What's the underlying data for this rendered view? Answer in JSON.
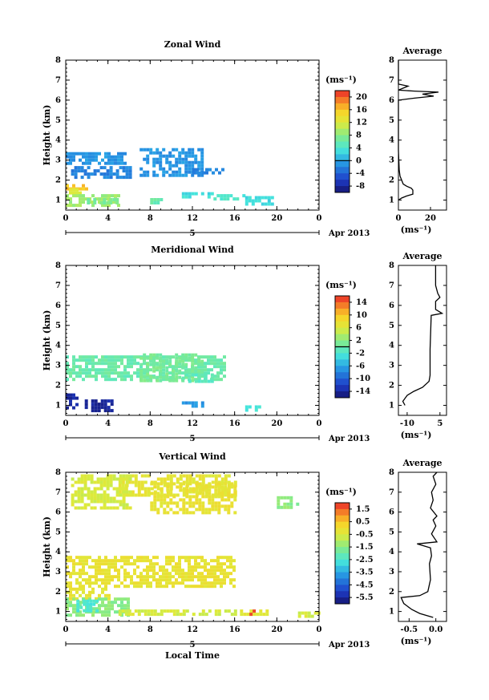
{
  "chart_data": [
    {
      "type": "heatmap",
      "title": "Zonal Wind",
      "ylabel": "Height (km)",
      "xlim": [
        0,
        24
      ],
      "ylim": [
        0.5,
        8
      ],
      "x_ticks": [
        "0",
        "4",
        "8",
        "12",
        "16",
        "20",
        "0"
      ],
      "x_tick_values": [
        0,
        4,
        8,
        12,
        16,
        20,
        24
      ],
      "y_ticks": [
        "1",
        "2",
        "3",
        "4",
        "5",
        "6",
        "7",
        "8"
      ],
      "date_marker": "5",
      "date_label": "Apr 2013",
      "colorbar_unit": "(ms⁻¹)",
      "colorbar_ticks": [
        "20",
        "16",
        "12",
        "8",
        "4",
        "0",
        "-4",
        "-8"
      ],
      "colorbar_values": [
        20,
        16,
        12,
        8,
        4,
        0,
        -4,
        -8
      ],
      "colorbar_range": [
        -10,
        22
      ],
      "colorbar_zero_line": 0,
      "patches": [
        {
          "x": [
            0,
            2
          ],
          "y": [
            1.6,
            1.8
          ],
          "v": 16
        },
        {
          "x": [
            0,
            1.5
          ],
          "y": [
            1.3,
            1.6
          ],
          "v": 12
        },
        {
          "x": [
            0,
            5
          ],
          "y": [
            0.8,
            1.3
          ],
          "v": 9
        },
        {
          "x": [
            2,
            5
          ],
          "y": [
            0.8,
            1.1
          ],
          "v": 7
        },
        {
          "x": [
            8,
            9
          ],
          "y": [
            0.8,
            1.1
          ],
          "v": 6
        },
        {
          "x": [
            11,
            14
          ],
          "y": [
            1.1,
            1.4
          ],
          "v": 3
        },
        {
          "x": [
            14,
            17
          ],
          "y": [
            1.1,
            1.3
          ],
          "v": 4
        },
        {
          "x": [
            17,
            19.5
          ],
          "y": [
            0.8,
            1.2
          ],
          "v": 3
        },
        {
          "x": [
            0,
            5.5
          ],
          "y": [
            2.8,
            3.4
          ],
          "v": -1
        },
        {
          "x": [
            0.5,
            6
          ],
          "y": [
            2.2,
            2.7
          ],
          "v": -2
        },
        {
          "x": [
            7,
            13
          ],
          "y": [
            2.2,
            3.6
          ],
          "v": -1
        },
        {
          "x": [
            12,
            15
          ],
          "y": [
            2.3,
            2.6
          ],
          "v": -2
        }
      ],
      "profile": {
        "title": "Average",
        "xlabel": "(ms⁻¹)",
        "xlim": [
          0,
          30
        ],
        "x_ticks": [
          "0",
          "20"
        ],
        "x_tick_values": [
          0,
          20
        ],
        "points": [
          [
            0,
            1.0
          ],
          [
            2,
            1.1
          ],
          [
            5,
            1.2
          ],
          [
            9,
            1.3
          ],
          [
            9,
            1.5
          ],
          [
            8,
            1.6
          ],
          [
            5,
            1.7
          ],
          [
            3,
            1.8
          ],
          [
            2,
            2.0
          ],
          [
            1,
            2.2
          ],
          [
            0.5,
            2.5
          ],
          [
            0,
            3.5
          ],
          [
            0,
            6.0
          ],
          [
            10,
            6.1
          ],
          [
            22,
            6.2
          ],
          [
            15,
            6.3
          ],
          [
            25,
            6.4
          ],
          [
            10,
            6.45
          ],
          [
            0,
            6.5
          ],
          [
            3,
            6.6
          ],
          [
            6,
            6.7
          ],
          [
            0,
            6.8
          ],
          [
            0,
            8
          ]
        ]
      }
    },
    {
      "type": "heatmap",
      "title": "Meridional Wind",
      "ylabel": "Height (km)",
      "xlim": [
        0,
        24
      ],
      "ylim": [
        0.5,
        8
      ],
      "x_ticks": [
        "0",
        "4",
        "8",
        "12",
        "16",
        "20",
        "0"
      ],
      "x_tick_values": [
        0,
        4,
        8,
        12,
        16,
        20,
        24
      ],
      "y_ticks": [
        "1",
        "2",
        "3",
        "4",
        "5",
        "6",
        "7",
        "8"
      ],
      "date_marker": "5",
      "date_label": "Apr 2013",
      "colorbar_unit": "(ms⁻¹)",
      "colorbar_ticks": [
        "14",
        "10",
        "6",
        "2",
        "-2",
        "-6",
        "-10",
        "-14"
      ],
      "colorbar_values": [
        14,
        10,
        6,
        2,
        -2,
        -6,
        -10,
        -14
      ],
      "colorbar_range": [
        -16,
        16
      ],
      "colorbar_zero_line": 0,
      "patches": [
        {
          "x": [
            0,
            1
          ],
          "y": [
            0.8,
            1.6
          ],
          "v": -14
        },
        {
          "x": [
            1.8,
            4.5
          ],
          "y": [
            0.8,
            1.3
          ],
          "v": -14
        },
        {
          "x": [
            0,
            15
          ],
          "y": [
            2.3,
            3.5
          ],
          "v": 0
        },
        {
          "x": [
            7,
            13
          ],
          "y": [
            2.3,
            3.6
          ],
          "v": 1
        },
        {
          "x": [
            11,
            14
          ],
          "y": [
            2.2,
            2.6
          ],
          "v": -1
        },
        {
          "x": [
            11,
            13
          ],
          "y": [
            0.9,
            1.2
          ],
          "v": -7
        },
        {
          "x": [
            17,
            18.5
          ],
          "y": [
            0.8,
            1.0
          ],
          "v": -3
        }
      ],
      "profile": {
        "title": "Average",
        "xlabel": "(ms⁻¹)",
        "xlim": [
          -14,
          8
        ],
        "x_ticks": [
          "-10",
          "5"
        ],
        "x_tick_values": [
          -10,
          5
        ],
        "points": [
          [
            -11,
            1.0
          ],
          [
            -12,
            1.2
          ],
          [
            -10,
            1.5
          ],
          [
            -7,
            1.7
          ],
          [
            -3,
            1.9
          ],
          [
            0,
            2.2
          ],
          [
            0.5,
            2.5
          ],
          [
            0.5,
            3.8
          ],
          [
            1,
            5.5
          ],
          [
            6,
            5.6
          ],
          [
            3,
            5.8
          ],
          [
            3,
            6.2
          ],
          [
            5,
            6.4
          ],
          [
            4,
            6.6
          ],
          [
            3,
            7.0
          ],
          [
            3,
            8
          ]
        ]
      }
    },
    {
      "type": "heatmap",
      "title": "Vertical Wind",
      "ylabel": "Height (km)",
      "xlabel": "Local Time",
      "xlim": [
        0,
        24
      ],
      "ylim": [
        0.5,
        8
      ],
      "x_ticks": [
        "0",
        "4",
        "8",
        "12",
        "16",
        "20",
        "0"
      ],
      "x_tick_values": [
        0,
        4,
        8,
        12,
        16,
        20,
        24
      ],
      "y_ticks": [
        "1",
        "2",
        "3",
        "4",
        "5",
        "6",
        "7",
        "8"
      ],
      "date_marker": "5",
      "date_label": "Apr 2013",
      "colorbar_unit": "(ms⁻¹)",
      "colorbar_ticks": [
        "1.5",
        "0.5",
        "-0.5",
        "-1.5",
        "-2.5",
        "-3.5",
        "-4.5",
        "-5.5"
      ],
      "colorbar_values": [
        1.5,
        0.5,
        -0.5,
        -1.5,
        -2.5,
        -3.5,
        -4.5,
        -5.5
      ],
      "colorbar_range": [
        -6,
        2
      ],
      "colorbar_zero_line": null,
      "patches": [
        {
          "x": [
            0,
            16
          ],
          "y": [
            2.3,
            3.8
          ],
          "v": -0.2
        },
        {
          "x": [
            0,
            4
          ],
          "y": [
            1.6,
            2.2
          ],
          "v": -0.3
        },
        {
          "x": [
            0,
            6
          ],
          "y": [
            0.8,
            1.7
          ],
          "v": -1.5
        },
        {
          "x": [
            1,
            3
          ],
          "y": [
            1.1,
            1.6
          ],
          "v": -2.5
        },
        {
          "x": [
            5,
            16
          ],
          "y": [
            0.8,
            1.1
          ],
          "v": -0.6
        },
        {
          "x": [
            5,
            16
          ],
          "y": [
            6.8,
            7.9
          ],
          "v": -0.3
        },
        {
          "x": [
            0.5,
            6
          ],
          "y": [
            6.2,
            7.9
          ],
          "v": -0.6
        },
        {
          "x": [
            8,
            16
          ],
          "y": [
            6.0,
            7.5
          ],
          "v": -0.2
        },
        {
          "x": [
            16.5,
            19
          ],
          "y": [
            0.8,
            1.1
          ],
          "v": -0.4
        },
        {
          "x": [
            17.4,
            17.8
          ],
          "y": [
            0.9,
            1.1
          ],
          "v": 1.5
        },
        {
          "x": [
            20,
            22
          ],
          "y": [
            6.2,
            6.8
          ],
          "v": -1.5
        },
        {
          "x": [
            22,
            24
          ],
          "y": [
            0.8,
            1.0
          ],
          "v": -0.6
        }
      ],
      "profile": {
        "title": "Average",
        "xlabel": "(ms⁻¹)",
        "xlim": [
          -0.7,
          0.2
        ],
        "x_ticks": [
          "-0.5",
          "0.0"
        ],
        "x_tick_values": [
          -0.5,
          0.0
        ],
        "points": [
          [
            -0.05,
            0.7
          ],
          [
            -0.3,
            0.9
          ],
          [
            -0.45,
            1.1
          ],
          [
            -0.6,
            1.4
          ],
          [
            -0.65,
            1.7
          ],
          [
            -0.3,
            1.8
          ],
          [
            -0.15,
            2.0
          ],
          [
            -0.1,
            2.6
          ],
          [
            -0.12,
            3.4
          ],
          [
            -0.08,
            3.8
          ],
          [
            -0.1,
            4.2
          ],
          [
            -0.35,
            4.4
          ],
          [
            0.02,
            4.5
          ],
          [
            -0.08,
            4.9
          ],
          [
            0.0,
            5.3
          ],
          [
            -0.05,
            5.6
          ],
          [
            0.02,
            5.8
          ],
          [
            -0.1,
            6.2
          ],
          [
            -0.05,
            6.6
          ],
          [
            -0.08,
            7.0
          ],
          [
            0.0,
            7.4
          ],
          [
            -0.05,
            7.8
          ],
          [
            0.02,
            8.0
          ]
        ]
      }
    }
  ]
}
